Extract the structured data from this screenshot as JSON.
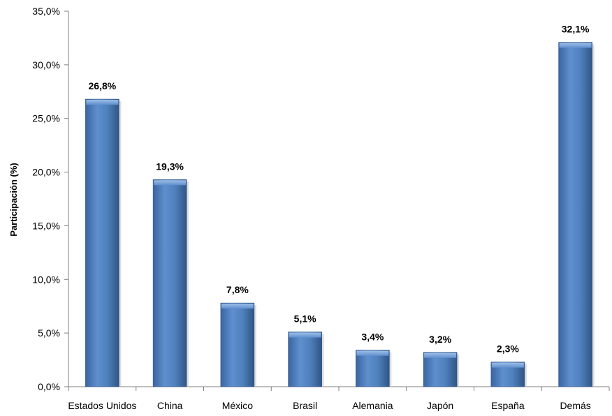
{
  "chart_data": {
    "type": "bar",
    "title": "",
    "xlabel": "",
    "ylabel": "Participación (%)",
    "categories": [
      "Estados Unidos",
      "China",
      "México",
      "Brasil",
      "Alemania",
      "Japón",
      "España",
      "Demás"
    ],
    "values": [
      26.8,
      19.3,
      7.8,
      5.1,
      3.4,
      3.2,
      2.3,
      32.1
    ],
    "data_labels": [
      "26,8%",
      "19,3%",
      "7,8%",
      "5,1%",
      "3,4%",
      "3,2%",
      "2,3%",
      "32,1%"
    ],
    "ylim": [
      0,
      35
    ],
    "yticks": [
      0,
      5,
      10,
      15,
      20,
      25,
      30,
      35
    ],
    "ytick_labels": [
      "0,0%",
      "5,0%",
      "10,0%",
      "15,0%",
      "20,0%",
      "25,0%",
      "30,0%",
      "35,0%"
    ],
    "grid": false,
    "legend": "none",
    "bar_color": "#4f81bd"
  }
}
